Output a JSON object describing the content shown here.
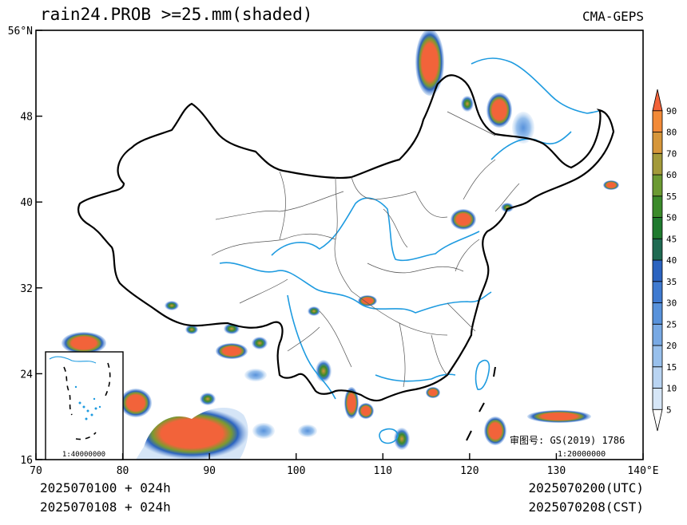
{
  "header": {
    "title": "rain24.PROB >=25.mm(shaded)",
    "model": "CMA-GEPS"
  },
  "axes": {
    "y_ticks": [
      {
        "value": 16,
        "label": "16"
      },
      {
        "value": 24,
        "label": "24"
      },
      {
        "value": 32,
        "label": "32"
      },
      {
        "value": 40,
        "label": "40"
      },
      {
        "value": 48,
        "label": "48"
      },
      {
        "value": 56,
        "label": "56°N"
      }
    ],
    "x_ticks": [
      {
        "value": 70,
        "label": "70"
      },
      {
        "value": 80,
        "label": "80"
      },
      {
        "value": 90,
        "label": "90"
      },
      {
        "value": 100,
        "label": "100"
      },
      {
        "value": 110,
        "label": "110"
      },
      {
        "value": 120,
        "label": "120"
      },
      {
        "value": 130,
        "label": "130"
      },
      {
        "value": 140,
        "label": "140°E"
      }
    ],
    "lon_range": [
      70,
      140
    ],
    "lat_range": [
      16,
      56
    ]
  },
  "colorbar": {
    "levels": [
      "5",
      "10",
      "15",
      "20",
      "25",
      "30",
      "35",
      "40",
      "45",
      "50",
      "55",
      "60",
      "70",
      "80",
      "90"
    ],
    "colors": [
      "#ffffff",
      "#d6e6f7",
      "#b9d4f2",
      "#98c0ec",
      "#78a9e4",
      "#5892db",
      "#3f7ad0",
      "#2b63c0",
      "#1f6a52",
      "#1f7a2e",
      "#3b8a2a",
      "#6b9a32",
      "#a39a3a",
      "#d6963a",
      "#f28a38",
      "#f2633a"
    ]
  },
  "footer": {
    "init_utc": "2025070100 + 024h",
    "init_cst": "2025070108 + 024h",
    "valid_utc": "2025070200(UTC)",
    "valid_cst": "2025070208(CST)"
  },
  "map_note": {
    "approval": "审图号: GS(2019) 1786",
    "scale": "1:20000000",
    "inset_scale": "1:40000000"
  },
  "colors": {
    "river": "#1e9be0",
    "border": "#000000",
    "province": "#555555",
    "prob_low": "#b9d4f2",
    "prob_high": "#f2633a"
  }
}
